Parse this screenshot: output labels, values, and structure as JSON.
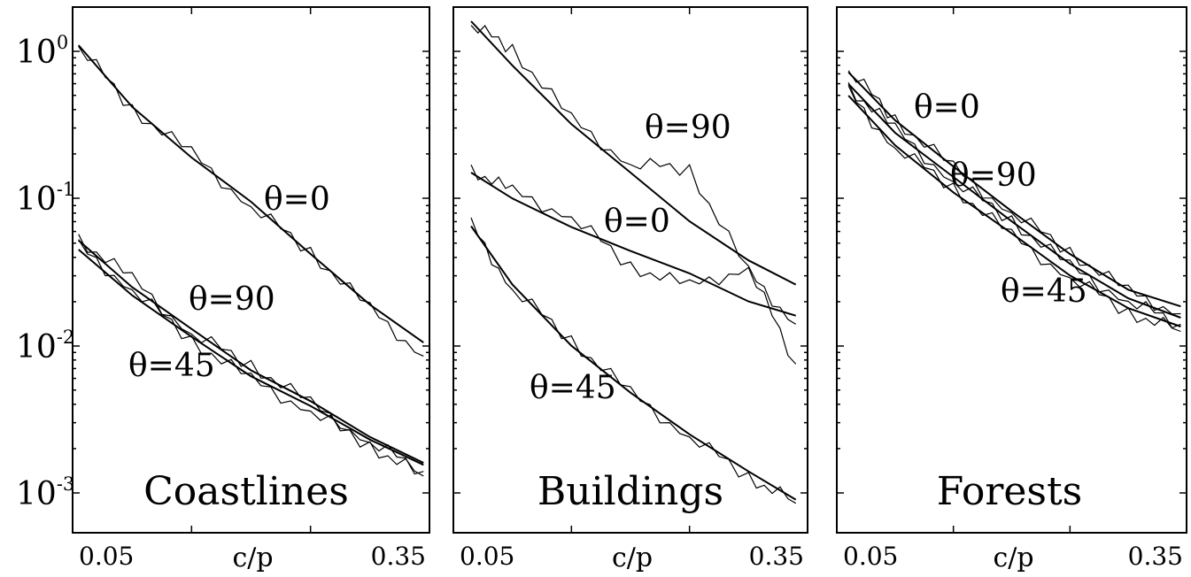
{
  "chart_data": [
    {
      "type": "line",
      "title": "Coastlines",
      "xlabel": "c/p",
      "x_tick_labels": [
        "0.05",
        "0.35"
      ],
      "xlim": [
        0.05,
        0.35
      ],
      "y_scale": "log",
      "ylim": [
        0.0008,
        2
      ],
      "y_tick_labels": [
        {
          "base": "10",
          "exp": "0"
        },
        {
          "base": "10",
          "exp": "-1"
        },
        {
          "base": "10",
          "exp": "-2"
        },
        {
          "base": "10",
          "exp": "-3"
        }
      ],
      "series": [
        {
          "name": "θ=0",
          "x": [
            0.055,
            0.1,
            0.15,
            0.2,
            0.25,
            0.3,
            0.345
          ],
          "fit": [
            1.1,
            0.42,
            0.19,
            0.095,
            0.042,
            0.019,
            0.0105
          ],
          "data": [
            1.08,
            0.41,
            0.2,
            0.088,
            0.044,
            0.0175,
            0.0085
          ]
        },
        {
          "name": "θ=90",
          "x": [
            0.055,
            0.1,
            0.15,
            0.2,
            0.25,
            0.3,
            0.345
          ],
          "fit": [
            0.052,
            0.025,
            0.013,
            0.0068,
            0.0042,
            0.0024,
            0.0016
          ],
          "data": [
            0.054,
            0.028,
            0.012,
            0.0075,
            0.004,
            0.0022,
            0.0014
          ]
        },
        {
          "name": "θ=45",
          "x": [
            0.055,
            0.1,
            0.15,
            0.2,
            0.25,
            0.3,
            0.345
          ],
          "fit": [
            0.045,
            0.022,
            0.0115,
            0.0062,
            0.0039,
            0.0023,
            0.00155
          ],
          "data": [
            0.047,
            0.024,
            0.011,
            0.0058,
            0.0036,
            0.0021,
            0.0013
          ]
        }
      ]
    },
    {
      "type": "line",
      "title": "Buildings",
      "xlabel": "c/p",
      "x_tick_labels": [
        "0.05",
        "0.35"
      ],
      "xlim": [
        0.05,
        0.35
      ],
      "y_scale": "log",
      "ylim": [
        0.0008,
        2
      ],
      "series": [
        {
          "name": "θ=90",
          "x": [
            0.065,
            0.1,
            0.15,
            0.2,
            0.25,
            0.3,
            0.34
          ],
          "fit": [
            1.6,
            0.8,
            0.32,
            0.15,
            0.07,
            0.038,
            0.026
          ],
          "data": [
            1.5,
            1.05,
            0.34,
            0.17,
            0.16,
            0.031,
            0.014
          ]
        },
        {
          "name": "θ=0",
          "x": [
            0.065,
            0.1,
            0.15,
            0.2,
            0.25,
            0.3,
            0.34
          ],
          "fit": [
            0.15,
            0.1,
            0.064,
            0.044,
            0.031,
            0.02,
            0.016
          ],
          "data": [
            0.16,
            0.11,
            0.075,
            0.035,
            0.025,
            0.034,
            0.0075
          ]
        },
        {
          "name": "θ=45",
          "x": [
            0.065,
            0.1,
            0.15,
            0.2,
            0.25,
            0.3,
            0.34
          ],
          "fit": [
            0.065,
            0.026,
            0.01,
            0.0048,
            0.0025,
            0.0014,
            0.0009
          ],
          "data": [
            0.066,
            0.024,
            0.011,
            0.0047,
            0.0024,
            0.0013,
            0.00085
          ]
        }
      ]
    },
    {
      "type": "line",
      "title": "Forests",
      "xlabel": "c/p",
      "x_tick_labels": [
        "0.05",
        "0.35"
      ],
      "xlim": [
        0.05,
        0.35
      ],
      "y_scale": "log",
      "ylim": [
        0.0008,
        2
      ],
      "series": [
        {
          "name": "θ=0",
          "x": [
            0.06,
            0.1,
            0.15,
            0.2,
            0.25,
            0.3,
            0.345
          ],
          "fit": [
            0.72,
            0.34,
            0.165,
            0.082,
            0.042,
            0.024,
            0.0185
          ],
          "data": [
            0.74,
            0.35,
            0.16,
            0.08,
            0.044,
            0.023,
            0.0165
          ]
        },
        {
          "name": "θ=90",
          "x": [
            0.06,
            0.1,
            0.15,
            0.2,
            0.25,
            0.3,
            0.345
          ],
          "fit": [
            0.6,
            0.28,
            0.14,
            0.07,
            0.036,
            0.021,
            0.0155
          ],
          "data": [
            0.58,
            0.29,
            0.13,
            0.072,
            0.034,
            0.02,
            0.014
          ]
        },
        {
          "name": "θ=45",
          "x": [
            0.06,
            0.1,
            0.15,
            0.2,
            0.25,
            0.3,
            0.345
          ],
          "fit": [
            0.5,
            0.23,
            0.11,
            0.058,
            0.03,
            0.018,
            0.0135
          ],
          "data": [
            0.52,
            0.22,
            0.12,
            0.055,
            0.029,
            0.017,
            0.0125
          ]
        }
      ]
    }
  ]
}
